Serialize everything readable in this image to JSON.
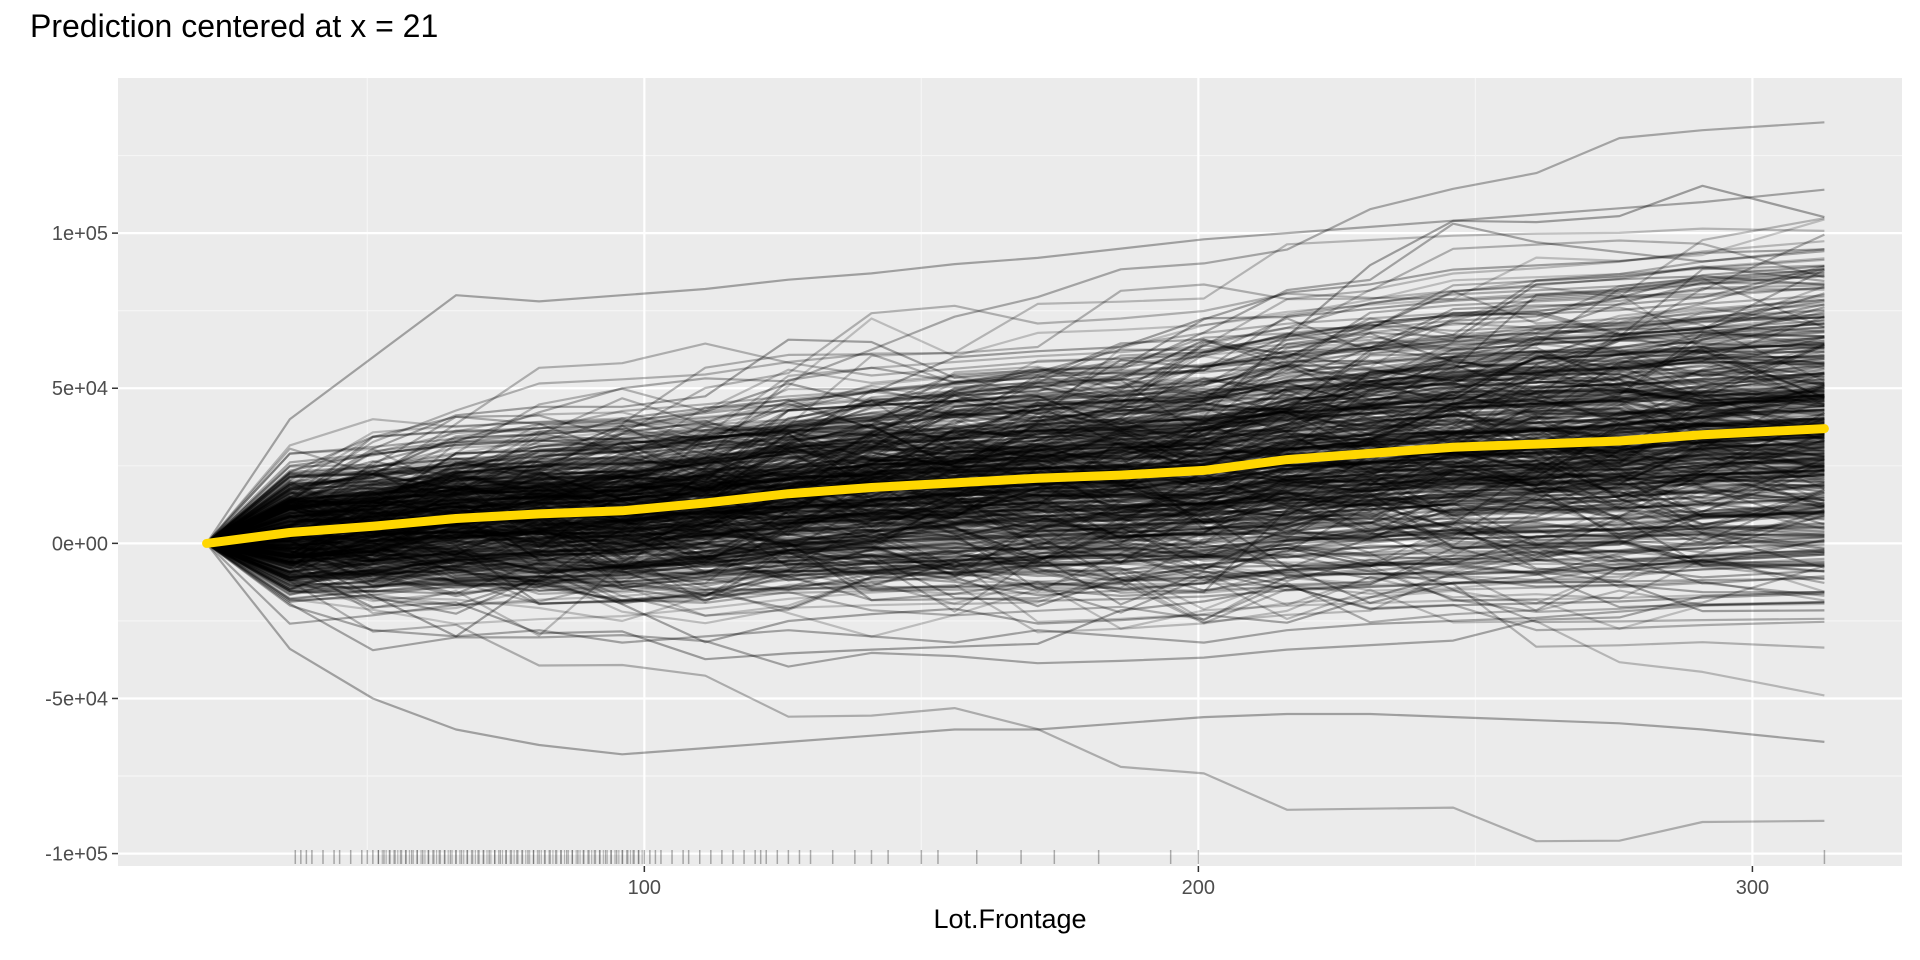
{
  "chart_data": {
    "type": "line",
    "title": "Prediction centered at x = 21",
    "xlabel": "Lot.Frontage",
    "ylabel": "",
    "xlim": [
      5,
      327
    ],
    "ylim": [
      -104000,
      150000
    ],
    "x_ticks": [
      100,
      200,
      300
    ],
    "y_ticks": [
      -100000,
      -50000,
      0,
      50000,
      100000
    ],
    "x_tick_labels": [
      "100",
      "200",
      "300"
    ],
    "y_tick_labels": [
      "-1e+05",
      "-5e+04",
      "0e+00",
      "5e+04",
      "1e+05"
    ],
    "grid": true,
    "legend": "none",
    "x_grid": [
      21,
      36,
      51,
      66,
      81,
      96,
      111,
      126,
      141,
      156,
      171,
      186,
      201,
      216,
      231,
      246,
      261,
      276,
      291,
      313
    ],
    "average_series": {
      "name": "average",
      "color": "#FFD700",
      "values": [
        0,
        3500,
        5500,
        8000,
        9500,
        10500,
        13000,
        16000,
        18000,
        19500,
        21000,
        22000,
        23500,
        27000,
        29000,
        31000,
        32000,
        33000,
        35000,
        37000
      ]
    },
    "ice_series": {
      "color": "#000000",
      "count": 520,
      "sample_values": [
        [
          0,
          18000,
          22000,
          24000,
          30000,
          32000,
          35000,
          38000,
          40000,
          44000,
          46000,
          50000,
          52000,
          55000,
          58000,
          60000,
          62000,
          63000,
          65000,
          68000
        ],
        [
          0,
          -20000,
          -28000,
          -30000,
          -28000,
          -32000,
          -30000,
          -28000,
          -30000,
          -32000,
          -28000,
          -30000,
          -32000,
          -28000,
          -26000,
          -25000,
          -24000,
          -22000,
          -20000,
          -19000
        ],
        [
          0,
          40000,
          60000,
          80000,
          78000,
          80000,
          82000,
          85000,
          87000,
          90000,
          92000,
          95000,
          98000,
          100000,
          102000,
          104000,
          106000,
          108000,
          110000,
          114000
        ],
        [
          0,
          -34000,
          -50000,
          -60000,
          -65000,
          -68000,
          -66000,
          -64000,
          -62000,
          -60000,
          -60000,
          -58000,
          -56000,
          -55000,
          -55000,
          -56000,
          -57000,
          -58000,
          -60000,
          -64000
        ]
      ]
    },
    "rug_x": [
      37,
      38,
      39,
      40,
      42,
      44,
      45,
      47,
      49,
      50,
      51,
      52,
      53,
      54,
      55,
      56,
      57,
      58,
      59,
      60,
      61,
      62,
      63,
      64,
      65,
      66,
      67,
      68,
      69,
      70,
      71,
      72,
      73,
      74,
      75,
      76,
      77,
      78,
      79,
      80,
      81,
      82,
      83,
      84,
      85,
      86,
      87,
      88,
      89,
      90,
      91,
      92,
      93,
      94,
      95,
      96,
      97,
      98,
      99,
      100,
      101,
      102,
      103,
      105,
      107,
      108,
      110,
      112,
      114,
      116,
      118,
      120,
      121,
      122,
      124,
      126,
      128,
      130,
      134,
      138,
      141,
      144,
      150,
      153,
      160,
      168,
      174,
      182,
      195,
      200,
      313
    ]
  },
  "colors": {
    "panel": "#EBEBEB",
    "grid_major": "#FFFFFF",
    "grid_minor": "#F5F5F5",
    "ice_line": "#000000",
    "average_line": "#FFD700",
    "tick": "#333333"
  }
}
